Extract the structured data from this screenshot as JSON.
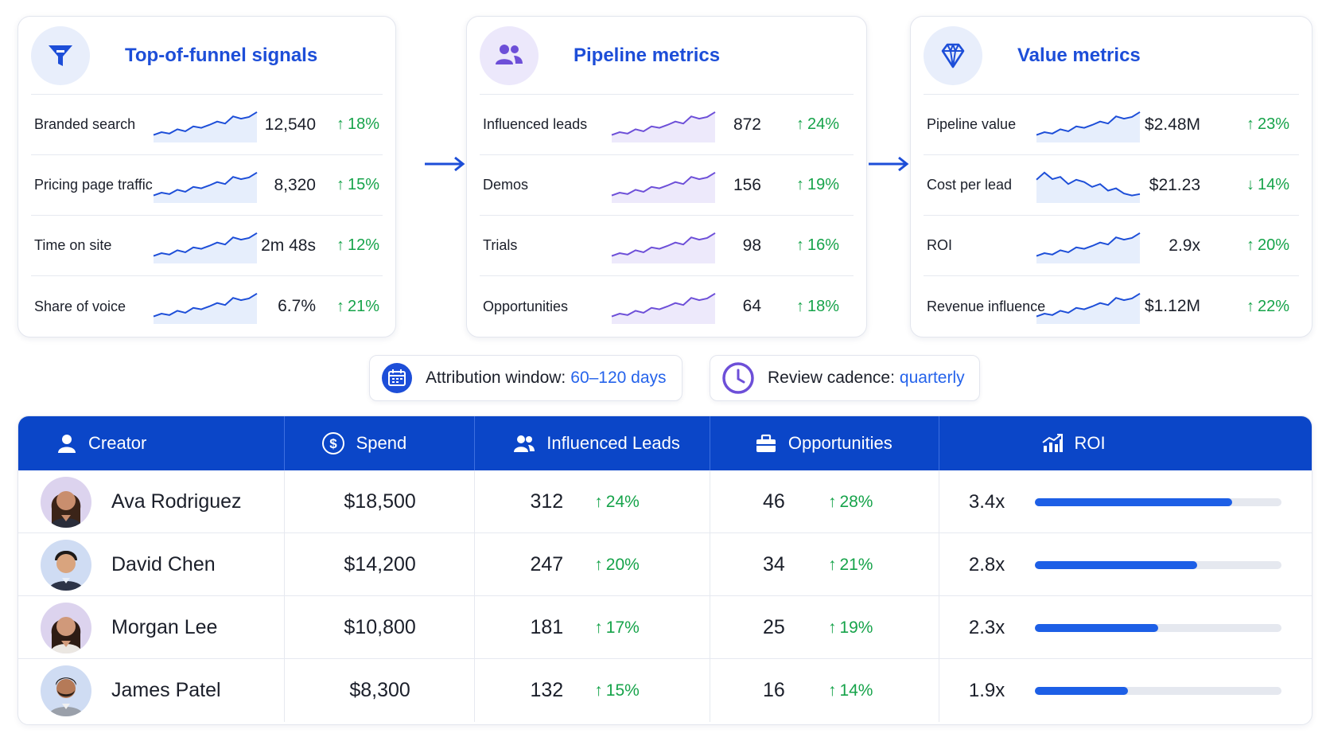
{
  "colors": {
    "accent": "#1d4ed8",
    "header_bg": "#0b46c8",
    "up": "#16a34a",
    "bar": "#1d5fe6"
  },
  "cards": [
    {
      "title": "Top-of-funnel signals",
      "icon": "funnel-icon",
      "metrics": [
        {
          "label": "Branded search",
          "value": "12,540",
          "change": "18%",
          "direction": "up",
          "trend": "up"
        },
        {
          "label": "Pricing page traffic",
          "value": "8,320",
          "change": "15%",
          "direction": "up",
          "trend": "up"
        },
        {
          "label": "Time on site",
          "value": "2m 48s",
          "change": "12%",
          "direction": "up",
          "trend": "up"
        },
        {
          "label": "Share of voice",
          "value": "6.7%",
          "change": "21%",
          "direction": "up",
          "trend": "up"
        }
      ]
    },
    {
      "title": "Pipeline metrics",
      "icon": "users-icon",
      "metrics": [
        {
          "label": "Influenced leads",
          "value": "872",
          "change": "24%",
          "direction": "up",
          "trend": "up"
        },
        {
          "label": "Demos",
          "value": "156",
          "change": "19%",
          "direction": "up",
          "trend": "up"
        },
        {
          "label": "Trials",
          "value": "98",
          "change": "16%",
          "direction": "up",
          "trend": "up"
        },
        {
          "label": "Opportunities",
          "value": "64",
          "change": "18%",
          "direction": "up",
          "trend": "up"
        }
      ]
    },
    {
      "title": "Value metrics",
      "icon": "diamond-icon",
      "metrics": [
        {
          "label": "Pipeline value",
          "value": "$2.48M",
          "change": "23%",
          "direction": "up",
          "trend": "up"
        },
        {
          "label": "Cost per lead",
          "value": "$21.23",
          "change": "14%",
          "direction": "down",
          "trend": "down"
        },
        {
          "label": "ROI",
          "value": "2.9x",
          "change": "20%",
          "direction": "up",
          "trend": "up"
        },
        {
          "label": "Revenue influence",
          "value": "$1.12M",
          "change": "22%",
          "direction": "up",
          "trend": "up"
        }
      ]
    }
  ],
  "pills": {
    "attribution": {
      "label": "Attribution window:",
      "value": "60–120 days",
      "icon": "calendar-icon"
    },
    "cadence": {
      "label": "Review cadence:",
      "value": "quarterly",
      "icon": "clock-icon"
    }
  },
  "table": {
    "headers": [
      {
        "label": "Creator",
        "icon": "user-icon"
      },
      {
        "label": "Spend",
        "icon": "dollar-icon"
      },
      {
        "label": "Influenced Leads",
        "icon": "users-icon"
      },
      {
        "label": "Opportunities",
        "icon": "briefcase-icon"
      },
      {
        "label": "ROI",
        "icon": "chart-growth-icon"
      }
    ],
    "rows": [
      {
        "name": "Ava Rodriguez",
        "spend": "$18,500",
        "leads": "312",
        "leads_change": "24%",
        "opps": "46",
        "opps_change": "28%",
        "roi": "3.4x",
        "roi_fraction": 0.8
      },
      {
        "name": "David Chen",
        "spend": "$14,200",
        "leads": "247",
        "leads_change": "20%",
        "opps": "34",
        "opps_change": "21%",
        "roi": "2.8x",
        "roi_fraction": 0.66
      },
      {
        "name": "Morgan Lee",
        "spend": "$10,800",
        "leads": "181",
        "leads_change": "17%",
        "opps": "25",
        "opps_change": "19%",
        "roi": "2.3x",
        "roi_fraction": 0.5
      },
      {
        "name": "James Patel",
        "spend": "$8,300",
        "leads": "132",
        "leads_change": "15%",
        "opps": "16",
        "opps_change": "14%",
        "roi": "1.9x",
        "roi_fraction": 0.38
      }
    ]
  }
}
